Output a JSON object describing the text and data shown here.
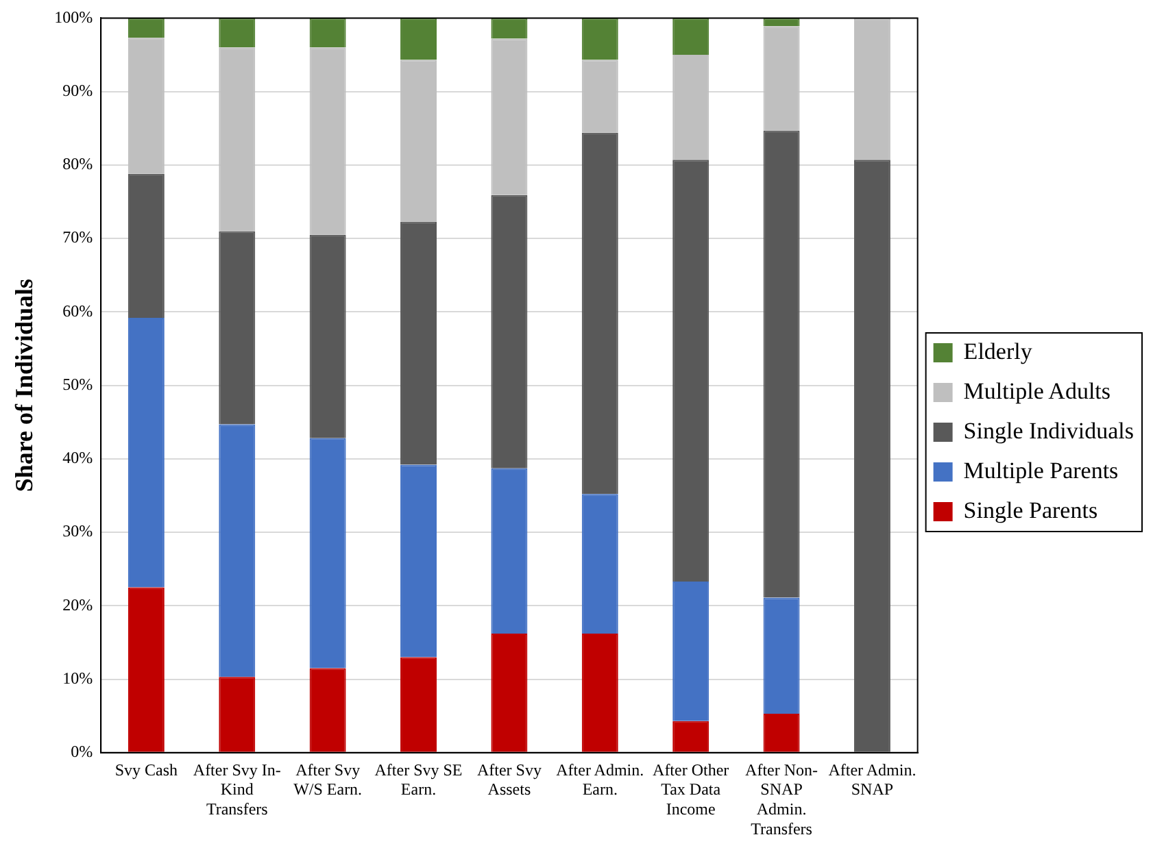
{
  "chart_data": {
    "type": "bar",
    "stacked": true,
    "ylabel": "Share of Individuals",
    "categories": [
      "Svy Cash",
      "After Svy In-Kind Transfers",
      "After Svy W/S Earn.",
      "After Svy SE Earn.",
      "After Svy Assets",
      "After Admin. Earn.",
      "After Other Tax Data Income",
      "After Non-SNAP Admin. Transfers",
      "After Admin. SNAP"
    ],
    "series": [
      {
        "name": "Single Parents",
        "color": "#c00000",
        "values": [
          22.5,
          10.3,
          11.5,
          13.0,
          16.2,
          16.2,
          4.3,
          5.3,
          0
        ]
      },
      {
        "name": "Multiple Parents",
        "color": "#4472c4",
        "values": [
          36.7,
          34.4,
          31.3,
          26.2,
          22.5,
          19.0,
          19.0,
          15.8,
          0
        ]
      },
      {
        "name": "Single Individuals",
        "color": "#595959",
        "values": [
          19.6,
          26.3,
          27.7,
          33.1,
          37.2,
          49.2,
          57.4,
          63.6,
          80.7
        ]
      },
      {
        "name": "Multiple Adults",
        "color": "#bfbfbf",
        "values": [
          18.5,
          25.0,
          25.5,
          22.0,
          21.3,
          9.9,
          14.3,
          14.2,
          19.3
        ]
      },
      {
        "name": "Elderly",
        "color": "#548235",
        "values": [
          2.7,
          4.0,
          4.0,
          5.7,
          2.8,
          5.7,
          5.0,
          1.1,
          0
        ]
      }
    ],
    "ylim": [
      0,
      100
    ],
    "yticks": [
      {
        "value": 0,
        "label": "0%"
      },
      {
        "value": 10,
        "label": "10%"
      },
      {
        "value": 20,
        "label": "20%"
      },
      {
        "value": 30,
        "label": "30%"
      },
      {
        "value": 40,
        "label": "40%"
      },
      {
        "value": 50,
        "label": "50%"
      },
      {
        "value": 60,
        "label": "60%"
      },
      {
        "value": 70,
        "label": "70%"
      },
      {
        "value": 80,
        "label": "80%"
      },
      {
        "value": 90,
        "label": "90%"
      },
      {
        "value": 100,
        "label": "100%"
      }
    ],
    "grid": "y",
    "legend": "right"
  }
}
